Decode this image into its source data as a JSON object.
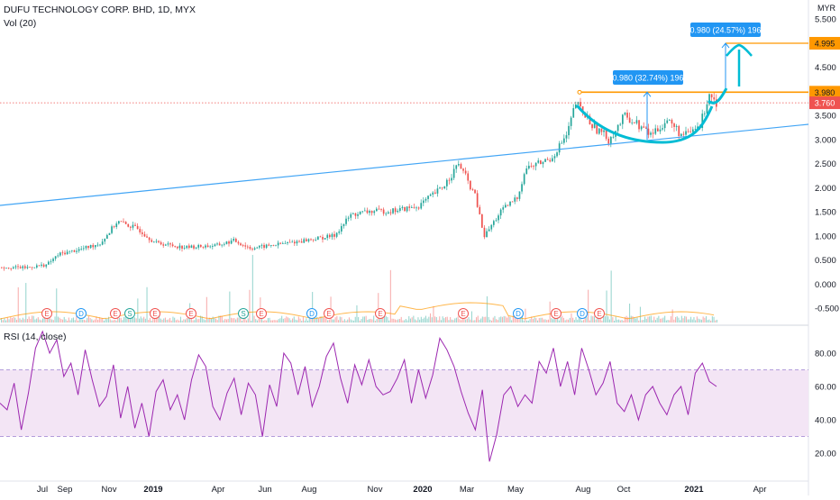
{
  "symbol": "DUFU TECHNOLOGY CORP. BHD, 1D, MYX",
  "volume_label": "Vol (20)",
  "rsi_label": "RSI (14, close)",
  "currency": "MYR",
  "colors": {
    "up": "#26a69a",
    "down": "#ef5350",
    "trend_line": "#42a5f5",
    "resistance": "#ff9800",
    "pattern": "#00bcd4",
    "rsi_line": "#9c27b0",
    "rsi_band": "#f3e5f5",
    "price_dotted": "#ef5350",
    "measure": "#2196f3"
  },
  "chart_data": [
    {
      "type": "candlestick",
      "title": "",
      "x_ticks": [
        "Jul",
        "Sep",
        "Nov",
        "2019",
        "Apr",
        "Jun",
        "Aug",
        "Nov",
        "2020",
        "Mar",
        "May",
        "Aug",
        "Oct",
        "2021",
        "Apr"
      ],
      "y_ticks": [
        "5.500",
        "5.000",
        "4.500",
        "4.000",
        "3.500",
        "3.000",
        "2.500",
        "2.000",
        "1.500",
        "1.000",
        "0.500",
        "0.000",
        "-0.500"
      ],
      "ylim": [
        -0.55,
        5.55
      ],
      "price_path": [
        [
          0,
          0.35
        ],
        [
          0.03,
          0.34
        ],
        [
          0.055,
          0.4
        ],
        [
          0.07,
          0.62
        ],
        [
          0.1,
          0.74
        ],
        [
          0.12,
          0.85
        ],
        [
          0.14,
          1.3
        ],
        [
          0.165,
          1.14
        ],
        [
          0.185,
          0.86
        ],
        [
          0.22,
          0.76
        ],
        [
          0.26,
          0.8
        ],
        [
          0.28,
          0.9
        ],
        [
          0.3,
          0.74
        ],
        [
          0.34,
          0.84
        ],
        [
          0.37,
          0.92
        ],
        [
          0.4,
          1.0
        ],
        [
          0.42,
          1.43
        ],
        [
          0.44,
          1.5
        ],
        [
          0.47,
          1.52
        ],
        [
          0.5,
          1.6
        ],
        [
          0.53,
          2.0
        ],
        [
          0.55,
          2.5
        ],
        [
          0.57,
          1.8
        ],
        [
          0.58,
          0.98
        ],
        [
          0.6,
          1.5
        ],
        [
          0.62,
          1.8
        ],
        [
          0.63,
          2.4
        ],
        [
          0.66,
          2.6
        ],
        [
          0.68,
          3.1
        ],
        [
          0.69,
          3.75
        ],
        [
          0.71,
          3.3
        ],
        [
          0.73,
          3.0
        ],
        [
          0.75,
          3.5
        ],
        [
          0.78,
          3.1
        ],
        [
          0.8,
          3.4
        ],
        [
          0.82,
          3.05
        ],
        [
          0.84,
          3.3
        ],
        [
          0.85,
          3.98
        ],
        [
          0.86,
          3.76
        ]
      ],
      "last_price": "3.760",
      "resistance_price": "3.980",
      "target_price": "4.995",
      "measure_labels": [
        "0.980 (32.74%) 196",
        "0.980 (24.57%) 196"
      ],
      "event_markers": [
        "E",
        "D",
        "E",
        "S",
        "E",
        "E",
        "S",
        "E",
        "D",
        "E",
        "E",
        "E",
        "D",
        "E",
        "D",
        "E"
      ]
    },
    {
      "type": "line",
      "title": "RSI (14, close)",
      "y_ticks": [
        "80.00",
        "60.00",
        "40.00",
        "20.00"
      ],
      "ylim": [
        10,
        95
      ],
      "band": [
        30,
        70
      ],
      "values": [
        50,
        46,
        62,
        34,
        56,
        83,
        93,
        80,
        88,
        66,
        74,
        55,
        82,
        64,
        48,
        54,
        73,
        41,
        60,
        35,
        50,
        30,
        57,
        64,
        46,
        55,
        40,
        64,
        79,
        72,
        48,
        40,
        56,
        65,
        43,
        62,
        55,
        30,
        61,
        48,
        80,
        74,
        55,
        72,
        48,
        60,
        78,
        86,
        65,
        50,
        73,
        61,
        76,
        60,
        55,
        57,
        65,
        76,
        50,
        70,
        53,
        67,
        89,
        82,
        72,
        57,
        44,
        34,
        58,
        15,
        31,
        55,
        60,
        48,
        55,
        50,
        75,
        68,
        83,
        60,
        75,
        55,
        83,
        70,
        55,
        62,
        75,
        50,
        45,
        55,
        40,
        55,
        60,
        50,
        43,
        55,
        60,
        43,
        68,
        74,
        63,
        60
      ]
    }
  ]
}
